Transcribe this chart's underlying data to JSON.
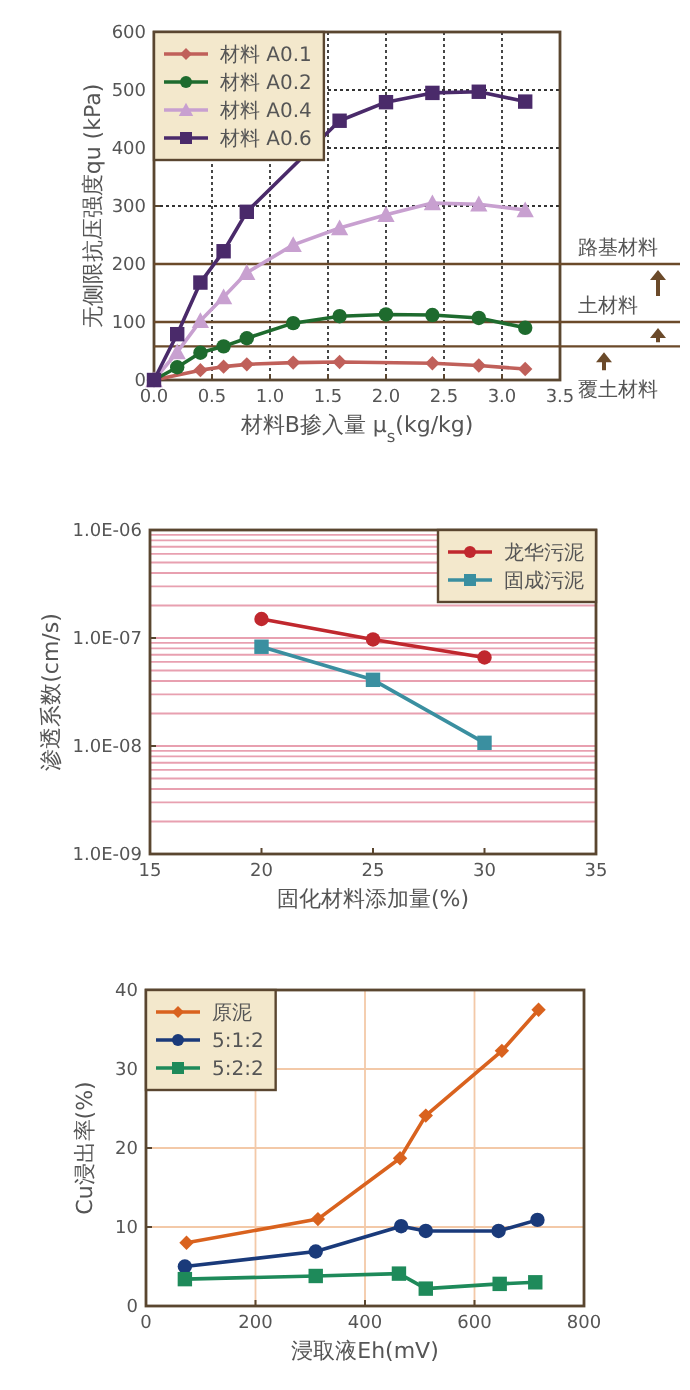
{
  "chart_data": [
    {
      "type": "line",
      "xlabel": "材料B掺入量 μ$_{s}$(kg/kg)",
      "ylabel": "无侧限抗压强度qu (kPa)",
      "xlim": [
        0,
        3.5
      ],
      "ylim": [
        0,
        600
      ],
      "xticks": [
        {
          "value": 0,
          "label": "0.0"
        },
        0.5,
        {
          "value": 1,
          "label": "1.0"
        },
        1.5,
        {
          "value": 2,
          "label": "2.0"
        },
        2.5,
        {
          "value": 3,
          "label": "3.0"
        },
        3.5
      ],
      "yticks": [
        0,
        100,
        200,
        300,
        400,
        500,
        600
      ],
      "grid": true,
      "legend": "top left",
      "series": [
        {
          "name": "材料 A0.1",
          "color": "#c0605a",
          "marker": "diamond",
          "x": [
            0,
            0.4,
            0.6,
            0.8,
            1.2,
            1.6,
            2.4,
            2.8,
            3.2
          ],
          "values": [
            0,
            17,
            23,
            27,
            30,
            31,
            29,
            25,
            19
          ]
        },
        {
          "name": "材料 A0.2",
          "color": "#1e6b2e",
          "marker": "circle",
          "x": [
            0,
            0.2,
            0.4,
            0.6,
            0.8,
            1.2,
            1.6,
            2.0,
            2.4,
            2.8,
            3.2
          ],
          "values": [
            0,
            22,
            47,
            58,
            72,
            98,
            110,
            113,
            112,
            107,
            90
          ]
        },
        {
          "name": "材料 A0.4",
          "color": "#c8a0d0",
          "marker": "triangle",
          "x": [
            0,
            0.2,
            0.4,
            0.6,
            0.8,
            1.2,
            1.6,
            2.0,
            2.4,
            2.8,
            3.2
          ],
          "values": [
            0,
            48,
            102,
            143,
            185,
            233,
            262,
            285,
            305,
            303,
            293
          ]
        },
        {
          "name": "材料 A0.6",
          "color": "#4a2a6a",
          "marker": "square",
          "x": [
            0,
            0.2,
            0.4,
            0.6,
            0.8,
            1.6,
            2.0,
            2.4,
            2.8,
            3.2
          ],
          "values": [
            0,
            79,
            168,
            222,
            290,
            447,
            479,
            495,
            497,
            480
          ]
        }
      ],
      "ref_lines": [
        {
          "axis": "y",
          "value": 200,
          "label": "路基材料",
          "color": "#6b4a2a"
        },
        {
          "axis": "y",
          "value": 100,
          "label": "土材料",
          "color": "#6b4a2a"
        },
        {
          "axis": "y",
          "value": 58,
          "label": "覆土材料",
          "color": "#6b4a2a"
        }
      ]
    },
    {
      "type": "line",
      "xlabel": "固化材料添加量(%)",
      "ylabel": "渗透系数(cm/s)",
      "log": "y",
      "xlim": [
        15,
        35
      ],
      "ylim": [
        1e-09,
        1e-06
      ],
      "xticks": [
        15,
        20,
        25,
        30,
        35
      ],
      "yticks": [
        {
          "value": 1e-09,
          "label": "1.0E-09"
        },
        {
          "value": 1e-08,
          "label": "1.0E-08"
        },
        {
          "value": 1e-07,
          "label": "1.0E-07"
        },
        {
          "value": 1e-06,
          "label": "1.0E-06"
        }
      ],
      "grid": "y",
      "legend": "top right",
      "series": [
        {
          "name": "龙华污泥",
          "color": "#c0282e",
          "marker": "circle",
          "x": [
            20,
            25,
            30
          ],
          "values": [
            1.5e-07,
            9.7e-08,
            6.6e-08
          ]
        },
        {
          "name": "固成污泥",
          "color": "#3a8fa0",
          "marker": "square",
          "x": [
            20,
            25,
            30
          ],
          "values": [
            8.3e-08,
            4.1e-08,
            1.07e-08
          ]
        }
      ]
    },
    {
      "type": "line",
      "xlabel": "浸取液Eh(mV)",
      "ylabel": "Cu浸出率(%)",
      "xlim": [
        0,
        800
      ],
      "ylim": [
        0,
        40
      ],
      "xticks": [
        0,
        200,
        400,
        600,
        800
      ],
      "yticks": [
        0,
        10,
        20,
        30,
        40
      ],
      "grid": true,
      "legend": "top left",
      "series": [
        {
          "name": "原泥",
          "color": "#d9621e",
          "marker": "diamond",
          "x": [
            74,
            314,
            464,
            511,
            650,
            717
          ],
          "values": [
            8.0,
            11.0,
            18.7,
            24.1,
            32.3,
            37.5
          ]
        },
        {
          "name": "5:1:2",
          "color": "#1a3a7a",
          "marker": "circle",
          "x": [
            71,
            310,
            466,
            511,
            644,
            715
          ],
          "values": [
            5.0,
            6.9,
            10.1,
            9.5,
            9.5,
            10.9
          ]
        },
        {
          "name": "5:2:2",
          "color": "#1e8a5a",
          "marker": "square",
          "x": [
            71,
            310,
            462,
            511,
            646,
            711
          ],
          "values": [
            3.4,
            3.8,
            4.1,
            2.2,
            2.8,
            3.0
          ]
        }
      ]
    }
  ]
}
